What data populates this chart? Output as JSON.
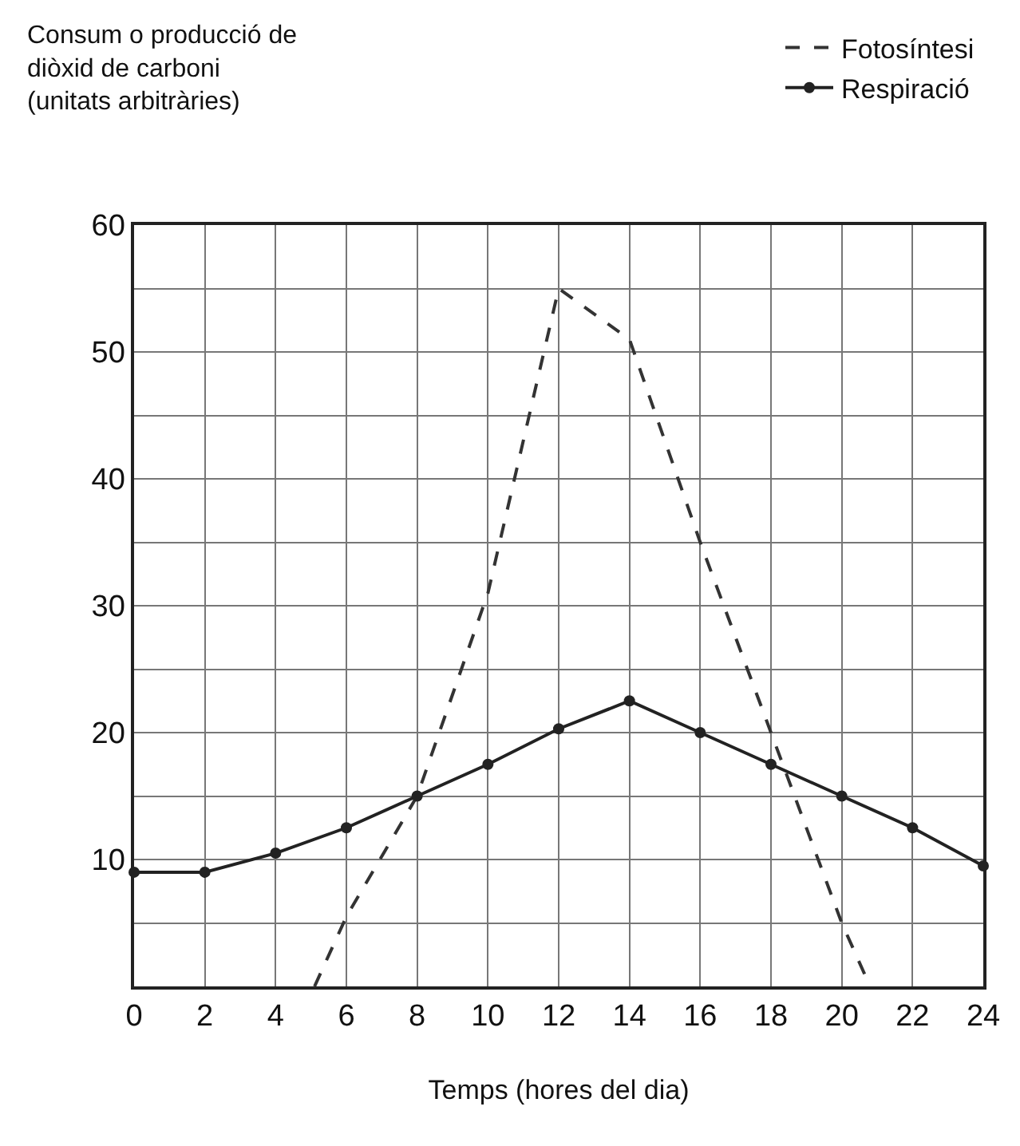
{
  "chart_data": {
    "type": "line",
    "ylabel": "Consum o producció de\ndiòxid de carboni\n(unitats arbitràries)",
    "xlabel": "Temps (hores del dia)",
    "series": [
      {
        "name": "Fotosíntesi",
        "color": "#333333",
        "line_style": "dashed",
        "marker": "none",
        "x": [
          5.1,
          6,
          8,
          10,
          12,
          14,
          16,
          18,
          20,
          20.8
        ],
        "values": [
          0,
          5.5,
          15,
          31,
          55,
          51,
          35,
          20,
          5,
          0
        ]
      },
      {
        "name": "Respiració",
        "color": "#222222",
        "line_style": "solid",
        "marker": "circle",
        "x": [
          0,
          2,
          4,
          6,
          8,
          10,
          12,
          14,
          16,
          18,
          20,
          22,
          24
        ],
        "values": [
          9,
          9,
          10.5,
          12.5,
          15,
          17.5,
          20.3,
          22.5,
          20,
          17.5,
          15,
          12.5,
          9.5
        ]
      }
    ],
    "xlim": [
      0,
      24
    ],
    "xticks": [
      0,
      2,
      4,
      6,
      8,
      10,
      12,
      14,
      16,
      18,
      20,
      22,
      24
    ],
    "ylim": [
      0,
      60
    ],
    "yticks": [
      {
        "value": 0,
        "label": null
      },
      {
        "value": 5,
        "label": null
      },
      10,
      {
        "value": 15,
        "label": null
      },
      20,
      {
        "value": 25,
        "label": null
      },
      30,
      {
        "value": 35,
        "label": null
      },
      40,
      {
        "value": 45,
        "label": null
      },
      50,
      {
        "value": 55,
        "label": null
      },
      60
    ],
    "grid": true,
    "legend": "top right"
  }
}
